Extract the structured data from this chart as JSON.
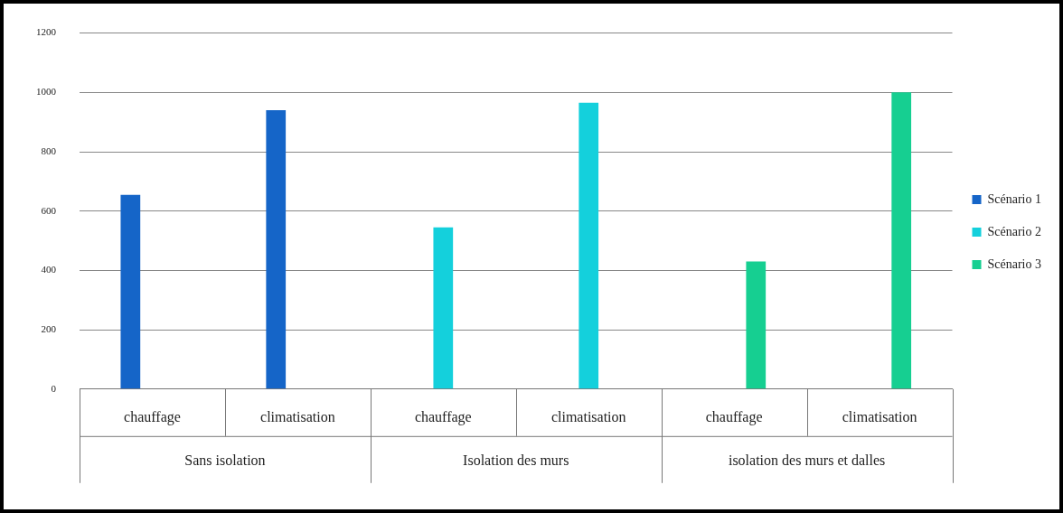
{
  "chart_data": {
    "type": "bar",
    "categories": [
      "chauffage",
      "climatisation",
      "chauffage",
      "climatisation",
      "chauffage",
      "climatisation"
    ],
    "series": [
      {
        "name": "Scénario 1",
        "color": "#1565c8",
        "values": [
          655,
          940,
          null,
          null,
          null,
          null
        ]
      },
      {
        "name": "Scénario 2",
        "color": "#14d0dc",
        "values": [
          null,
          null,
          545,
          965,
          null,
          null
        ]
      },
      {
        "name": "Scénario 3",
        "color": "#16cf91",
        "values": [
          null,
          null,
          null,
          null,
          430,
          1000
        ]
      }
    ],
    "annotations": [
      "Sans isolation",
      "Isolation des murs",
      "isolation des murs et dalles"
    ],
    "ylim": [
      0,
      1200
    ],
    "yticks": [
      0,
      200,
      400,
      600,
      800,
      1000,
      1200
    ],
    "grid": "y",
    "legend": "right"
  }
}
